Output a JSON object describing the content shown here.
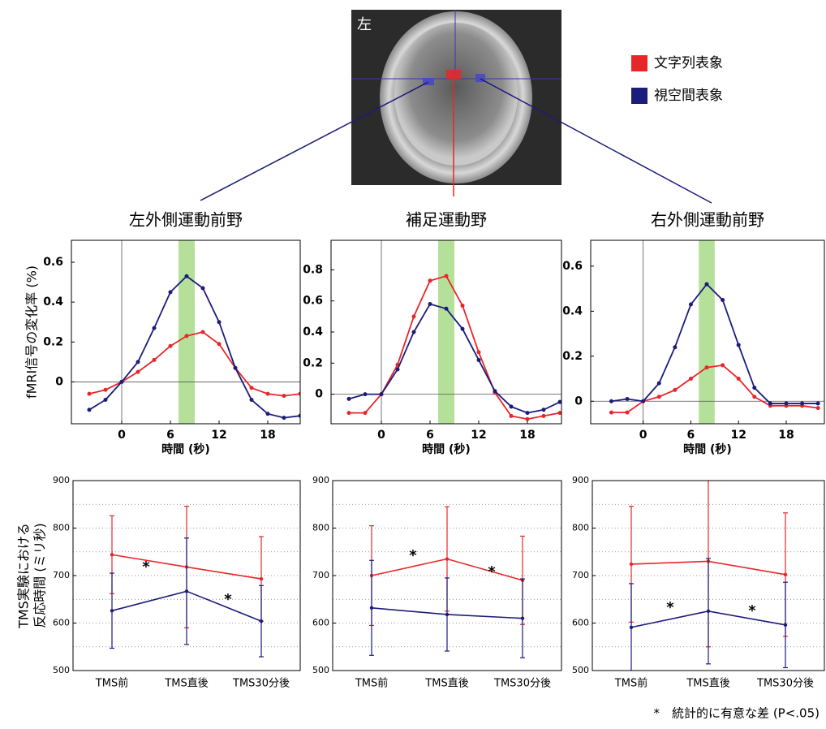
{
  "brain_label": "左",
  "footnote": "*　統計的に有意な差 (P<.05)",
  "chart_data": [
    {
      "type": "line",
      "title": "左外側運動前野",
      "x_label": "時間 (秒)",
      "y_label": "fMRI信号の変化率 (%)",
      "x": [
        -4,
        -2,
        0,
        2,
        4,
        6,
        8,
        10,
        12,
        14,
        16,
        18,
        20,
        22
      ],
      "series": [
        {
          "name": "文字列表象",
          "color": "#e8262a",
          "values": [
            -0.06,
            -0.04,
            0,
            0.05,
            0.11,
            0.18,
            0.23,
            0.25,
            0.19,
            0.07,
            -0.03,
            -0.06,
            -0.07,
            -0.06
          ]
        },
        {
          "name": "視空間表象",
          "color": "#1c1c7a",
          "values": [
            -0.14,
            -0.09,
            0,
            0.1,
            0.27,
            0.45,
            0.53,
            0.47,
            0.3,
            0.07,
            -0.09,
            -0.16,
            -0.18,
            -0.17
          ]
        }
      ],
      "band": [
        7,
        9
      ],
      "band_color": "#b5e09a",
      "xlim": [
        -6.2,
        22
      ],
      "xticks": [
        0,
        6,
        12,
        18
      ],
      "ylim": [
        -0.21,
        0.71
      ],
      "yticks": [
        0,
        0.2,
        0.4,
        0.6
      ]
    },
    {
      "type": "line",
      "title": "補足運動野",
      "x_label": "時間 (秒)",
      "x": [
        -4,
        -2,
        0,
        2,
        4,
        6,
        8,
        10,
        12,
        14,
        16,
        18,
        20,
        22
      ],
      "series": [
        {
          "name": "文字列表象",
          "color": "#e8262a",
          "values": [
            -0.12,
            -0.12,
            0,
            0.19,
            0.5,
            0.73,
            0.76,
            0.57,
            0.27,
            0.01,
            -0.14,
            -0.16,
            -0.14,
            -0.12
          ]
        },
        {
          "name": "視空間表象",
          "color": "#1c1c7a",
          "values": [
            -0.03,
            0,
            0,
            0.16,
            0.4,
            0.58,
            0.55,
            0.42,
            0.22,
            0.02,
            -0.08,
            -0.12,
            -0.1,
            -0.05
          ]
        }
      ],
      "band": [
        7,
        9
      ],
      "band_color": "#b5e09a",
      "xlim": [
        -6.2,
        22.2
      ],
      "xticks": [
        0,
        6,
        12,
        18
      ],
      "ylim": [
        -0.19,
        0.99
      ],
      "yticks": [
        0,
        0.2,
        0.4,
        0.6,
        0.8
      ]
    },
    {
      "type": "line",
      "title": "右外側運動前野",
      "x_label": "時間 (秒)",
      "x": [
        -4,
        -2,
        0,
        2,
        4,
        6,
        8,
        10,
        12,
        14,
        16,
        18,
        20,
        22
      ],
      "series": [
        {
          "name": "文字列表象",
          "color": "#e8262a",
          "values": [
            -0.05,
            -0.05,
            0,
            0.02,
            0.05,
            0.1,
            0.15,
            0.16,
            0.1,
            0.02,
            -0.02,
            -0.02,
            -0.02,
            -0.03
          ]
        },
        {
          "name": "視空間表象",
          "color": "#1c1c7a",
          "values": [
            0,
            0.01,
            0,
            0.08,
            0.24,
            0.43,
            0.52,
            0.45,
            0.25,
            0.06,
            -0.01,
            -0.01,
            -0.01,
            -0.01
          ]
        }
      ],
      "band": [
        7,
        9
      ],
      "band_color": "#b5e09a",
      "xlim": [
        -6.6,
        22.8
      ],
      "xticks": [
        0,
        6,
        12,
        18
      ],
      "ylim": [
        -0.1,
        0.715
      ],
      "yticks": [
        0,
        0.2,
        0.4,
        0.6
      ]
    },
    {
      "type": "errorbar",
      "y_label": [
        "TMS実験における",
        "反応時間 (ミリ秒)"
      ],
      "categories": [
        "TMS前",
        "TMS直後",
        "TMS30分後"
      ],
      "series": [
        {
          "name": "文字列表象",
          "color": "#e8262a",
          "values": [
            744,
            718,
            693
          ],
          "errors": [
            82,
            128,
            89
          ]
        },
        {
          "name": "視空間表象",
          "color": "#1c1c7a",
          "values": [
            626,
            667,
            604
          ],
          "errors": [
            79,
            112,
            75
          ]
        }
      ],
      "annotations": [
        "*",
        "*"
      ],
      "ylim": [
        500,
        900
      ],
      "yticks": [
        500,
        600,
        700,
        800,
        900
      ],
      "yminorticks": [
        550,
        650,
        750,
        850
      ],
      "grid": true
    },
    {
      "type": "errorbar",
      "categories": [
        "TMS前",
        "TMS直後",
        "TMS30分後"
      ],
      "series": [
        {
          "name": "文字列表象",
          "color": "#e8262a",
          "values": [
            700,
            735,
            690
          ],
          "errors": [
            105,
            110,
            93
          ]
        },
        {
          "name": "視空間表象",
          "color": "#1c1c7a",
          "values": [
            632,
            618,
            610
          ],
          "errors": [
            100,
            77,
            83
          ]
        }
      ],
      "annotations": [
        "*",
        "*"
      ],
      "ylim": [
        500,
        900
      ],
      "yticks": [
        500,
        600,
        700,
        800,
        900
      ],
      "yminorticks": [
        550,
        650,
        750,
        850
      ],
      "grid": true
    },
    {
      "type": "errorbar",
      "categories": [
        "TMS前",
        "TMS直後",
        "TMS30分後"
      ],
      "series": [
        {
          "name": "文字列表象",
          "color": "#e8262a",
          "values": [
            724,
            730,
            702
          ],
          "errors": [
            122,
            180,
            130
          ]
        },
        {
          "name": "視空間表象",
          "color": "#1c1c7a",
          "values": [
            591,
            625,
            596
          ],
          "errors": [
            92,
            111,
            90
          ]
        }
      ],
      "annotations": [
        "*",
        "*"
      ],
      "ylim": [
        500,
        900
      ],
      "yticks": [
        500,
        600,
        700,
        800,
        900
      ],
      "yminorticks": [
        550,
        650,
        750,
        850
      ],
      "grid": true
    }
  ]
}
